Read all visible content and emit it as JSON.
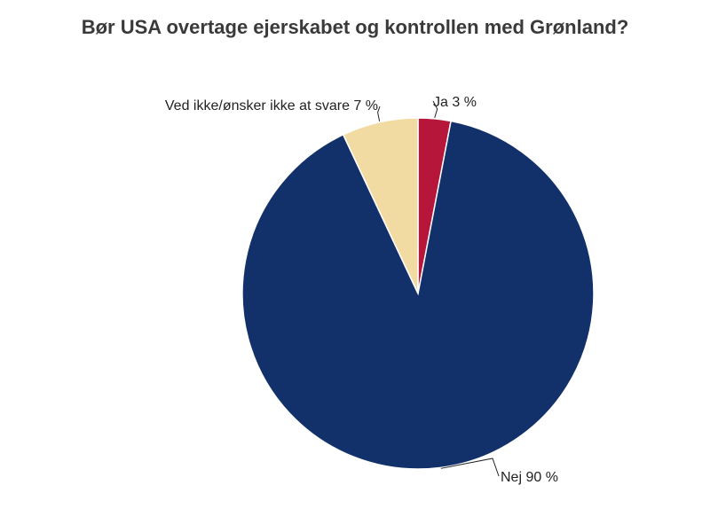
{
  "chart_data": {
    "type": "pie",
    "title": "Bør USA overtage ejerskabet og kontrollen med Grønland?",
    "slices": [
      {
        "label": "Ja",
        "value": 3,
        "text": "Ja 3 %",
        "color": "#b5163a"
      },
      {
        "label": "Nej",
        "value": 90,
        "text": "Nej 90 %",
        "color": "#12316b"
      },
      {
        "label": "Ved ikke/ønsker ikke at svare",
        "value": 7,
        "text": "Ved ikke/ønsker ikke at svare 7 %",
        "color": "#f2dba3"
      }
    ],
    "start": "top",
    "direction": "clockwise",
    "slice_border_color": "#ffffff",
    "legend": "none"
  }
}
